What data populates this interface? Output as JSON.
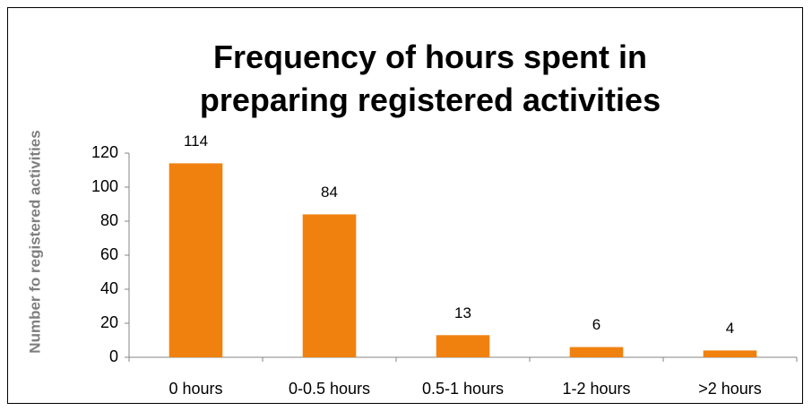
{
  "chart_data": {
    "type": "bar",
    "title": "Frequency of hours spent in preparing registered activities",
    "y_label": "Number fo registered activities",
    "categories": [
      "0 hours",
      "0-0.5 hours",
      "0.5-1 hours",
      "1-2 hours",
      ">2 hours"
    ],
    "values": [
      114,
      84,
      13,
      6,
      4
    ],
    "color": "#f0810f",
    "ylim": [
      0,
      120
    ],
    "yticks": [
      0,
      20,
      40,
      60,
      80,
      100,
      120
    ],
    "grid": false
  }
}
